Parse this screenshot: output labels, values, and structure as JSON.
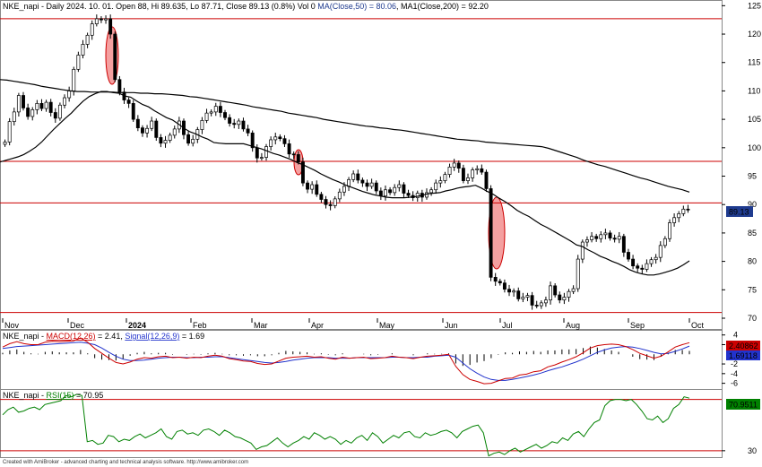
{
  "header": {
    "symbol": "NKE_napi",
    "title": "NKE_napi - Daily 2024. 10. 01. Open 88, Hi 89.635, Lo 87.71, Close 89.13 (0.8%) Vol 0 ",
    "ma50_label": "MA(Close,50) = 80.06",
    "ma200_label": ", MA1(Close,200) = 92.20"
  },
  "macd_header": {
    "prefix": "NKE_napi - ",
    "macd_label": "MACD(12,26)",
    "macd_value": " = 2.41, ",
    "signal_label": "Signal(12,26,9)",
    "signal_value": " = 1.69"
  },
  "rsi_header": {
    "prefix": "NKE_napi - ",
    "rsi_label": "RSI(15)",
    "rsi_value": " = 70.95"
  },
  "footer": "Created with AmiBroker - advanced charting and technical analysis software. http://www.amibroker.com",
  "colors": {
    "candle_up": "#ffffff",
    "candle_down": "#000000",
    "hline": "#cc0000",
    "ma": "#000000",
    "macd": "#cc0000",
    "signal": "#2233cc",
    "rsi": "#008000",
    "ellipse_fill": "#f4a0a0",
    "last_price_bg": "#1f3b8f"
  },
  "chart_data": [
    {
      "type": "candlestick",
      "title": "NKE_napi - Daily 2024. 10. 01.",
      "x_tick_labels": [
        "Nov",
        "Dec",
        "2024",
        "Feb",
        "Mar",
        "Apr",
        "May",
        "Jun",
        "Jul",
        "Aug",
        "Sep",
        "Oct"
      ],
      "y_tick_labels": [
        "70",
        "75",
        "80",
        "85",
        "90",
        "95",
        "100",
        "105",
        "110",
        "115",
        "120",
        "125"
      ],
      "ylim": [
        70,
        126
      ],
      "last_price": "89.13",
      "horizontal_lines": [
        122.7,
        97.6,
        90.3,
        71.0
      ],
      "close": [
        101.0,
        104.6,
        106.3,
        109.2,
        107.0,
        105.5,
        106.7,
        107.8,
        106.9,
        108.0,
        106.2,
        105.2,
        107.5,
        108.8,
        110.0,
        113.8,
        116.3,
        118.2,
        119.8,
        121.8,
        122.7,
        122.5,
        122.7,
        120.0,
        112.0,
        109.8,
        108.4,
        107.8,
        105.0,
        103.5,
        102.6,
        103.4,
        104.7,
        101.8,
        100.8,
        101.3,
        102.2,
        103.3,
        104.7,
        102.3,
        100.8,
        101.5,
        103.2,
        104.8,
        106.1,
        106.3,
        107.3,
        106.2,
        105.3,
        104.3,
        104.1,
        104.7,
        103.3,
        102.6,
        100.0,
        98.2,
        98.3,
        100.2,
        101.4,
        101.9,
        101.6,
        100.7,
        98.9,
        98.8,
        97.5,
        93.8,
        92.7,
        93.5,
        91.8,
        90.9,
        90.0,
        89.8,
        91.0,
        92.2,
        93.2,
        94.4,
        95.4,
        94.3,
        93.8,
        93.2,
        93.8,
        92.4,
        91.5,
        92.6,
        92.1,
        93.0,
        93.5,
        92.0,
        91.6,
        91.2,
        92.0,
        91.3,
        92.1,
        92.6,
        93.8,
        94.2,
        95.3,
        96.6,
        97.3,
        96.4,
        94.2,
        94.7,
        96.1,
        96.3,
        95.7,
        92.8,
        77.2,
        76.5,
        76.2,
        75.1,
        74.6,
        74.8,
        73.4,
        73.7,
        74.0,
        72.3,
        72.2,
        72.7,
        73.2,
        75.7,
        74.1,
        73.2,
        73.7,
        74.7,
        75.2,
        80.4,
        83.4,
        83.8,
        84.4,
        84.0,
        84.7,
        85.0,
        84.1,
        83.9,
        84.4,
        81.6,
        80.4,
        79.2,
        78.8,
        78.6,
        79.6,
        80.3,
        80.7,
        82.8,
        84.0,
        86.8,
        87.7,
        88.4,
        89.2,
        89.13
      ],
      "ma50": [
        97.5,
        97.8,
        98.1,
        98.4,
        98.8,
        99.4,
        100.1,
        101.0,
        102.1,
        103.2,
        104.2,
        105.2,
        106.1,
        107.2,
        108.2,
        109.0,
        109.5,
        109.9,
        109.9,
        109.7,
        109.6,
        109.1,
        108.9,
        108.2,
        107.6,
        107.2,
        106.5,
        105.9,
        105.3,
        104.9,
        104.2,
        103.4,
        102.8,
        102.4,
        101.9,
        101.5,
        100.9,
        100.8,
        100.7,
        100.7,
        100.7,
        100.7,
        100.4,
        100.1,
        99.8,
        99.4,
        99.0,
        98.7,
        98.3,
        97.9,
        97.4,
        97.0,
        96.5,
        96.0,
        95.4,
        94.9,
        94.4,
        94.0,
        93.5,
        93.1,
        92.7,
        92.3,
        92.0,
        91.7,
        91.5,
        91.3,
        91.2,
        91.2,
        91.2,
        91.3,
        91.4,
        91.6,
        91.9,
        92.0,
        92.1,
        92.4,
        92.6,
        92.9,
        93.1,
        93.2,
        93.4,
        92.9,
        92.3,
        91.8,
        91.1,
        90.5,
        89.8,
        89.0,
        88.4,
        87.9,
        87.2,
        86.5,
        86.0,
        85.4,
        84.8,
        84.2,
        83.6,
        82.9,
        82.6,
        82.0,
        81.5,
        80.9,
        80.5,
        80.0,
        79.6,
        79.1,
        78.5,
        78.1,
        77.8,
        77.6,
        77.6,
        77.8,
        78.1,
        78.4,
        78.8,
        79.4,
        80.1
      ],
      "ma200": [
        112.0,
        111.9,
        111.7,
        111.5,
        111.3,
        111.1,
        110.8,
        110.6,
        110.4,
        110.2,
        110.0,
        109.9,
        109.9,
        109.8,
        109.8,
        109.8,
        109.8,
        109.7,
        109.7,
        109.7,
        109.6,
        109.6,
        109.5,
        109.5,
        109.4,
        109.3,
        109.2,
        109.0,
        108.9,
        108.7,
        108.5,
        108.3,
        108.1,
        107.9,
        107.7,
        107.5,
        107.2,
        107.0,
        106.8,
        106.6,
        106.4,
        106.1,
        105.9,
        105.7,
        105.5,
        105.3,
        105.0,
        104.8,
        104.6,
        104.4,
        104.2,
        104.0,
        103.8,
        103.7,
        103.5,
        103.4,
        103.2,
        103.1,
        102.9,
        102.7,
        102.5,
        102.3,
        102.1,
        101.9,
        101.7,
        101.5,
        101.4,
        101.3,
        101.2,
        101.0,
        100.9,
        100.8,
        100.7,
        100.6,
        100.5,
        100.4,
        100.3,
        100.2,
        99.9,
        99.5,
        99.1,
        98.7,
        98.3,
        97.8,
        97.4,
        97.0,
        96.7,
        96.3,
        95.9,
        95.5,
        95.1,
        94.7,
        94.4,
        94.0,
        93.6,
        93.2,
        92.9,
        92.6,
        92.2
      ]
    },
    {
      "type": "macd",
      "title": "NKE_napi - MACD(12,26) = 2.41, Signal(12,26,9) = 1.69",
      "y_tick_labels": [
        "4",
        "2",
        "-2",
        "-4",
        "-6"
      ],
      "ylim": [
        -7,
        4.5
      ],
      "macd_value": "2.40862",
      "signal_value": "1.69118",
      "macd": [
        1.5,
        2.2,
        2.6,
        2.2,
        2.0,
        2.0,
        2.5,
        2.7,
        2.6,
        2.7,
        2.8,
        3.4,
        2.5,
        1.2,
        0.2,
        -0.8,
        -1.7,
        -2.0,
        -1.6,
        -1.0,
        -0.7,
        -0.8,
        -0.5,
        -0.4,
        -0.7,
        -0.6,
        -0.8,
        -0.6,
        -0.7,
        -0.4,
        -0.2,
        -0.4,
        -0.9,
        -1.1,
        -1.4,
        -1.5,
        -1.9,
        -2.1,
        -2.0,
        -1.4,
        -0.8,
        -0.6,
        -0.5,
        -0.4,
        -0.6,
        -0.5,
        -0.8,
        -1.0,
        -0.6,
        -0.8,
        -0.7,
        -0.6,
        -0.9,
        -0.8,
        -0.7,
        -0.4,
        -0.6,
        -0.7,
        -0.9,
        -0.6,
        -0.4,
        -0.3,
        -0.2,
        0.0,
        -2.5,
        -4.2,
        -5.2,
        -5.6,
        -6.1,
        -6.0,
        -5.5,
        -5.0,
        -4.9,
        -4.3,
        -4.1,
        -3.6,
        -3.4,
        -2.6,
        -2.2,
        -1.6,
        -1.1,
        -0.5,
        0.3,
        1.3,
        1.8,
        2.0,
        2.1,
        2.0,
        1.6,
        1.0,
        0.2,
        -0.3,
        -0.8,
        -0.4,
        0.5,
        1.5,
        2.0,
        2.4
      ],
      "signal": [
        1.2,
        1.4,
        1.6,
        1.7,
        1.8,
        1.9,
        2.0,
        2.1,
        2.2,
        2.3,
        2.4,
        2.5,
        2.3,
        2.0,
        1.3,
        0.4,
        -0.4,
        -1.0,
        -1.3,
        -1.3,
        -1.2,
        -1.0,
        -0.8,
        -0.7,
        -0.6,
        -0.6,
        -0.7,
        -0.7,
        -0.6,
        -0.6,
        -0.5,
        -0.5,
        -0.7,
        -0.9,
        -1.1,
        -1.3,
        -1.5,
        -1.7,
        -1.8,
        -1.7,
        -1.5,
        -1.2,
        -1.0,
        -0.8,
        -0.7,
        -0.7,
        -0.7,
        -0.8,
        -0.8,
        -0.8,
        -0.7,
        -0.7,
        -0.7,
        -0.7,
        -0.7,
        -0.6,
        -0.6,
        -0.7,
        -0.7,
        -0.6,
        -0.6,
        -0.4,
        -0.3,
        -0.2,
        -0.6,
        -1.8,
        -3.0,
        -3.9,
        -4.7,
        -5.2,
        -5.4,
        -5.4,
        -5.2,
        -4.9,
        -4.6,
        -4.3,
        -3.9,
        -3.4,
        -3.0,
        -2.6,
        -2.1,
        -1.6,
        -1.0,
        -0.3,
        0.4,
        0.9,
        1.3,
        1.5,
        1.6,
        1.5,
        1.2,
        0.8,
        0.4,
        0.1,
        0.2,
        0.6,
        1.1,
        1.7
      ]
    },
    {
      "type": "line",
      "title": "NKE_napi - RSI(15) = 70.95",
      "y_tick_labels": [
        "30"
      ],
      "ylim": [
        25,
        76
      ],
      "horizontal_lines": [
        70,
        30
      ],
      "last_value": "70.9511",
      "rsi": [
        58,
        62,
        64,
        60,
        61,
        63,
        64,
        62,
        66,
        67,
        68,
        69,
        73,
        72,
        74,
        73,
        37,
        38,
        35,
        36,
        42,
        41,
        37,
        39,
        38,
        41,
        43,
        40,
        42,
        44,
        47,
        41,
        39,
        45,
        46,
        43,
        44,
        42,
        46,
        47,
        45,
        42,
        46,
        44,
        41,
        40,
        38,
        36,
        31,
        33,
        34,
        37,
        40,
        36,
        33,
        36,
        38,
        41,
        39,
        44,
        42,
        39,
        41,
        39,
        35,
        38,
        36,
        40,
        42,
        38,
        44,
        41,
        36,
        39,
        42,
        40,
        44,
        45,
        41,
        40,
        44,
        42,
        43,
        45,
        46,
        44,
        40,
        45,
        47,
        49,
        50,
        44,
        26,
        28,
        29,
        27,
        30,
        32,
        29,
        31,
        33,
        35,
        32,
        34,
        37,
        36,
        40,
        38,
        43,
        45,
        41,
        47,
        52,
        54,
        65,
        69,
        70,
        70,
        69,
        70,
        66,
        61,
        55,
        54,
        57,
        52,
        55,
        63,
        66,
        72,
        71
      ]
    }
  ]
}
